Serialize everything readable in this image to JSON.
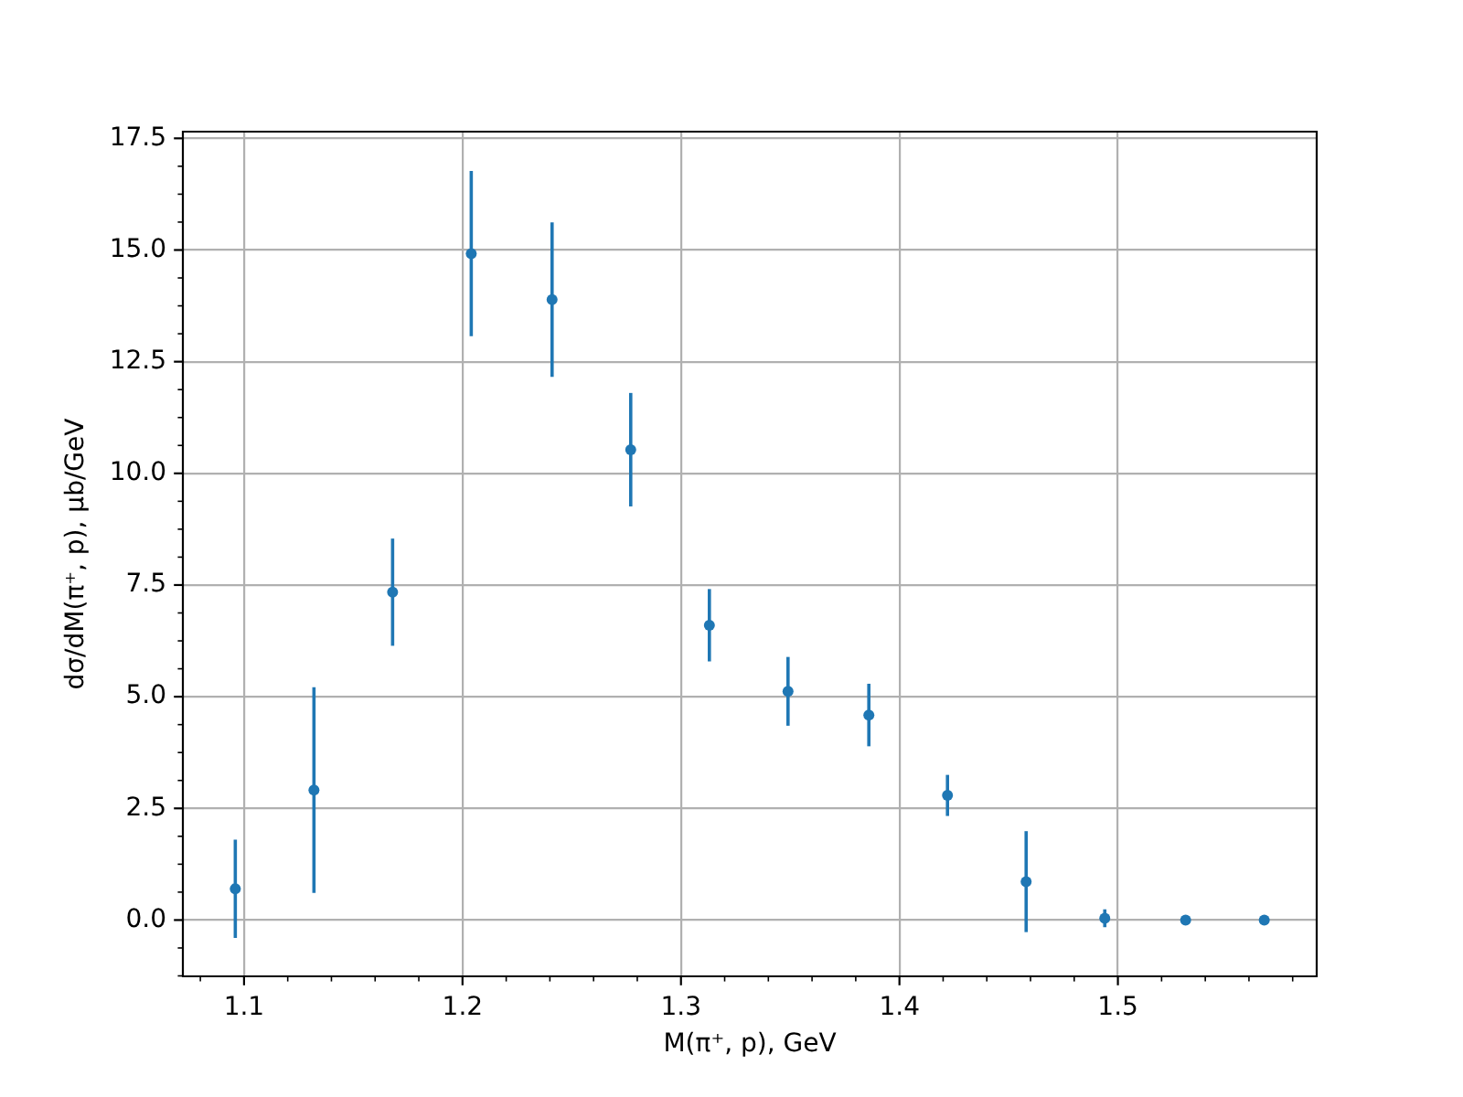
{
  "chart_data": {
    "type": "scatter",
    "xlabel": "M(π⁺, p), GeV",
    "ylabel": "dσ/dM(π⁺, p), μb/GeV",
    "x": [
      1.096,
      1.132,
      1.168,
      1.204,
      1.241,
      1.277,
      1.313,
      1.349,
      1.386,
      1.422,
      1.458,
      1.494,
      1.531,
      1.567
    ],
    "values": [
      0.7,
      2.91,
      7.34,
      14.92,
      13.89,
      10.53,
      6.6,
      5.12,
      4.59,
      2.79,
      0.86,
      0.04,
      0,
      0
    ],
    "errors": [
      1.1,
      2.3,
      1.2,
      1.85,
      1.73,
      1.27,
      0.81,
      0.77,
      0.7,
      0.46,
      1.13,
      0.2,
      null,
      null
    ],
    "color": "#1f77b4",
    "marker": "circle",
    "xlim": [
      1.072,
      1.591
    ],
    "xticks": [
      {
        "value": 1.08,
        "label": null
      },
      1.1,
      {
        "value": 1.12,
        "label": null
      },
      {
        "value": 1.14,
        "label": null
      },
      {
        "value": 1.16,
        "label": null
      },
      {
        "value": 1.18,
        "label": null
      },
      1.2,
      {
        "value": 1.22,
        "label": null
      },
      {
        "value": 1.24,
        "label": null
      },
      {
        "value": 1.26,
        "label": null
      },
      {
        "value": 1.28,
        "label": null
      },
      1.3,
      {
        "value": 1.32,
        "label": null
      },
      {
        "value": 1.34,
        "label": null
      },
      {
        "value": 1.36,
        "label": null
      },
      {
        "value": 1.38,
        "label": null
      },
      1.4,
      {
        "value": 1.42,
        "label": null
      },
      {
        "value": 1.44,
        "label": null
      },
      {
        "value": 1.46,
        "label": null
      },
      {
        "value": 1.48,
        "label": null
      },
      1.5,
      {
        "value": 1.52,
        "label": null
      },
      {
        "value": 1.54,
        "label": null
      },
      {
        "value": 1.56,
        "label": null
      },
      {
        "value": 1.58,
        "label": null
      }
    ],
    "ylim": [
      -1.26,
      17.65
    ],
    "yticks": [
      {
        "value": -1.25,
        "label": null
      },
      {
        "value": -0.625,
        "label": null
      },
      {
        "value": 0,
        "label": "0.0"
      },
      {
        "value": 0.625,
        "label": null
      },
      {
        "value": 1.25,
        "label": null
      },
      {
        "value": 1.875,
        "label": null
      },
      2.5,
      {
        "value": 3.125,
        "label": null
      },
      {
        "value": 3.75,
        "label": null
      },
      {
        "value": 4.375,
        "label": null
      },
      {
        "value": 5,
        "label": "5.0"
      },
      {
        "value": 5.625,
        "label": null
      },
      {
        "value": 6.25,
        "label": null
      },
      {
        "value": 6.875,
        "label": null
      },
      7.5,
      {
        "value": 8.125,
        "label": null
      },
      {
        "value": 8.75,
        "label": null
      },
      {
        "value": 9.375,
        "label": null
      },
      {
        "value": 10,
        "label": "10.0"
      },
      {
        "value": 10.625,
        "label": null
      },
      {
        "value": 11.25,
        "label": null
      },
      {
        "value": 11.875,
        "label": null
      },
      12.5,
      {
        "value": 13.125,
        "label": null
      },
      {
        "value": 13.75,
        "label": null
      },
      {
        "value": 14.375,
        "label": null
      },
      {
        "value": 15,
        "label": "15.0"
      },
      {
        "value": 15.625,
        "label": null
      },
      {
        "value": 16.25,
        "label": null
      },
      {
        "value": 16.875,
        "label": null
      },
      17.5
    ],
    "grid": true
  }
}
